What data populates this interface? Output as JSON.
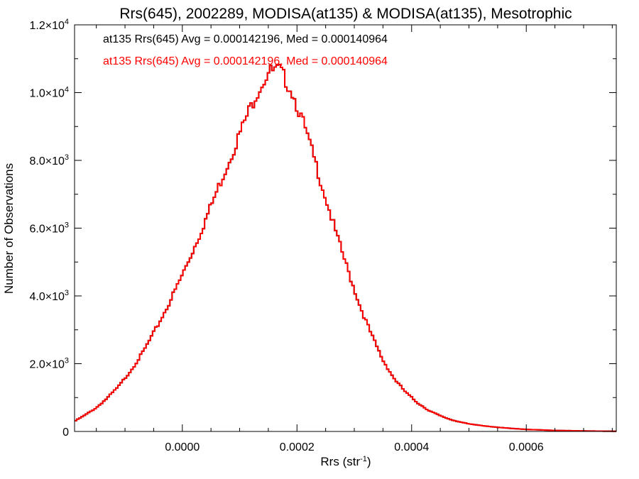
{
  "chart_data": {
    "type": "line",
    "title": "Rrs(645), 2002289, MODISA(at135) & MODISA(at135), Mesotrophic",
    "xlabel_base": "Rrs (str",
    "xlabel_sup": "-1",
    "xlabel_close": ")",
    "ylabel": "Number of Observations",
    "xlim": [
      -0.000188,
      0.000757
    ],
    "ylim": [
      0,
      12000
    ],
    "x_ticks": [
      {
        "value": 0.0,
        "label": "0.0000"
      },
      {
        "value": 0.0002,
        "label": "0.0002"
      },
      {
        "value": 0.0004,
        "label": "0.0004"
      },
      {
        "value": 0.0006,
        "label": "0.0006"
      }
    ],
    "y_ticks": [
      {
        "value": 0,
        "base": "0",
        "exp": ""
      },
      {
        "value": 2000,
        "base": "2.0×10",
        "exp": "3"
      },
      {
        "value": 4000,
        "base": "4.0×10",
        "exp": "3"
      },
      {
        "value": 6000,
        "base": "6.0×10",
        "exp": "3"
      },
      {
        "value": 8000,
        "base": "8.0×10",
        "exp": "3"
      },
      {
        "value": 10000,
        "base": "1.0×10",
        "exp": "4"
      },
      {
        "value": 12000,
        "base": "1.2×10",
        "exp": "4"
      }
    ],
    "legend": [
      {
        "text": "at135 Rrs(645) Avg = 0.000142196, Med = 0.000140964",
        "color": "#000000"
      },
      {
        "text": "at135 Rrs(645) Avg = 0.000142196, Med = 0.000140964",
        "color": "#ff0000"
      }
    ],
    "series_colors": [
      "#000000",
      "#ff0000"
    ],
    "profile": {
      "x": [
        -0.000188,
        -0.00017,
        -0.00015,
        -0.00013,
        -0.00011,
        -9e-05,
        -7e-05,
        -5e-05,
        -3e-05,
        -1e-05,
        1e-05,
        3e-05,
        5e-05,
        7e-05,
        9e-05,
        0.00011,
        0.00013,
        0.00015,
        0.00017,
        0.00019,
        0.00021,
        0.00023,
        0.00025,
        0.00027,
        0.00029,
        0.00031,
        0.00033,
        0.00035,
        0.00037,
        0.00039,
        0.00041,
        0.00043,
        0.00045,
        0.00047,
        0.0005,
        0.00055,
        0.0006,
        0.00065,
        0.0007,
        0.000757
      ],
      "y": [
        300,
        480,
        700,
        1000,
        1350,
        1800,
        2300,
        2900,
        3550,
        4250,
        5000,
        5800,
        6650,
        7500,
        8350,
        9200,
        10000,
        10600,
        10650,
        10100,
        9150,
        8050,
        6900,
        5750,
        4700,
        3700,
        2850,
        2100,
        1550,
        1150,
        850,
        620,
        460,
        340,
        220,
        120,
        60,
        30,
        15,
        5
      ]
    }
  }
}
